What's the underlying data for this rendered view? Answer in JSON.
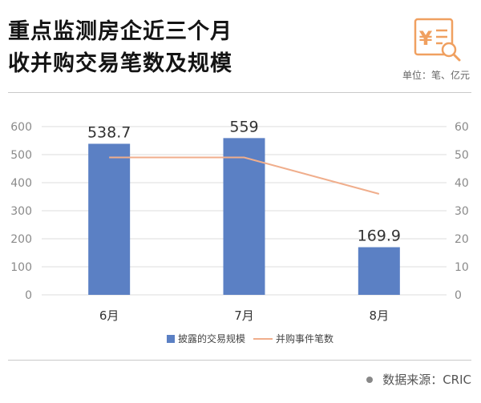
{
  "header": {
    "title_line1": "重点监测房企近三个月",
    "title_line2": "收并购交易笔数及规模",
    "unit": "单位：笔、亿元"
  },
  "footer": {
    "source": "数据来源：CRIC"
  },
  "colors": {
    "bar": "#5b80c4",
    "line": "#f0ae8c",
    "accent": "#f0a060"
  },
  "icons": {
    "logo": "document-yen-search-icon"
  },
  "chart_data": {
    "type": "bar",
    "categories": [
      "6月",
      "7月",
      "8月"
    ],
    "series": [
      {
        "name": "披露的交易规模",
        "type": "bar",
        "axis": "left",
        "values": [
          538.7,
          559,
          169.9
        ],
        "labels": [
          "538.7",
          "559",
          "169.9"
        ]
      },
      {
        "name": "并购事件笔数",
        "type": "line",
        "axis": "right",
        "values": [
          49,
          49,
          36
        ]
      }
    ],
    "y_left": {
      "min": 0,
      "max": 600,
      "ticks": [
        0,
        100,
        200,
        300,
        400,
        500,
        600
      ]
    },
    "y_right": {
      "min": 0,
      "max": 60,
      "ticks": [
        0,
        10,
        20,
        30,
        40,
        50,
        60
      ]
    },
    "grid": true,
    "legend_position": "bottom"
  }
}
